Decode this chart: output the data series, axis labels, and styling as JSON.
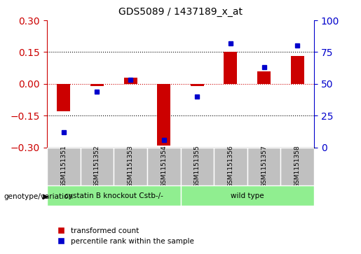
{
  "title": "GDS5089 / 1437189_x_at",
  "samples": [
    "GSM1151351",
    "GSM1151352",
    "GSM1151353",
    "GSM1151354",
    "GSM1151355",
    "GSM1151356",
    "GSM1151357",
    "GSM1151358"
  ],
  "red_values": [
    -0.13,
    -0.01,
    0.03,
    -0.29,
    -0.01,
    0.15,
    0.06,
    0.13
  ],
  "blue_values": [
    0.12,
    0.44,
    0.53,
    0.06,
    0.4,
    0.82,
    0.63,
    0.8
  ],
  "group1_samples": [
    "GSM1151351",
    "GSM1151352",
    "GSM1151353",
    "GSM1151354"
  ],
  "group2_samples": [
    "GSM1151355",
    "GSM1151356",
    "GSM1151357",
    "GSM1151358"
  ],
  "group1_label": "cystatin B knockout Cstb-/-",
  "group2_label": "wild type",
  "genotype_label": "genotype/variation",
  "ylim": [
    -0.3,
    0.3
  ],
  "yticks_left": [
    -0.3,
    -0.15,
    0.0,
    0.15,
    0.3
  ],
  "yticks_right": [
    0,
    25,
    50,
    75,
    100
  ],
  "legend_red": "transformed count",
  "legend_blue": "percentile rank within the sample",
  "bar_color": "#cc0000",
  "dot_color": "#0000cc",
  "group1_bg": "#90ee90",
  "group2_bg": "#90ee90",
  "header_bg": "#c0c0c0",
  "plot_bg": "#ffffff",
  "dotted_line_color": "#000000",
  "zero_line_color": "#cc0000"
}
